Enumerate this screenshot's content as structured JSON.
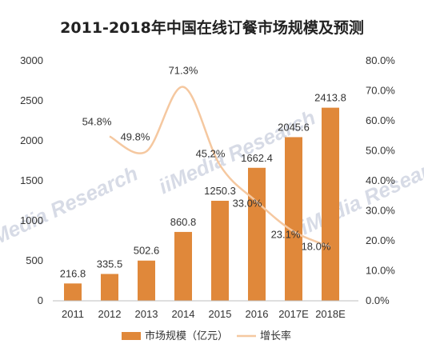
{
  "chart_data": {
    "type": "bar",
    "title": "2011-2018年中国在线订餐市场规模及预测",
    "categories": [
      "2011",
      "2012",
      "2013",
      "2014",
      "2015",
      "2016",
      "2017E",
      "2018E"
    ],
    "series": [
      {
        "name": "市场规模（亿元）",
        "type": "bar",
        "axis": "left",
        "color": "#E0883A",
        "values": [
          216.8,
          335.5,
          502.6,
          860.8,
          1250.3,
          1662.4,
          2045.6,
          2413.8
        ],
        "labels": [
          "216.8",
          "335.5",
          "502.6",
          "860.8",
          "1250.3",
          "1662.4",
          "2045.6",
          "2413.8"
        ]
      },
      {
        "name": "增长率",
        "type": "line",
        "axis": "right",
        "color": "#F5C8A0",
        "values": [
          null,
          54.8,
          49.8,
          71.3,
          45.2,
          33.0,
          23.1,
          18.0
        ],
        "labels": [
          "",
          "54.8%",
          "49.8%",
          "71.3%",
          "45.2%",
          "33.0%",
          "23.1%",
          "18.0%"
        ]
      }
    ],
    "y_left": {
      "min": 0,
      "max": 3000,
      "ticks": [
        "0",
        "500",
        "1000",
        "1500",
        "2000",
        "2500",
        "3000"
      ]
    },
    "y_right": {
      "min": 0,
      "max": 80,
      "ticks": [
        "0.0%",
        "10.0%",
        "20.0%",
        "30.0%",
        "40.0%",
        "50.0%",
        "60.0%",
        "70.0%",
        "80.0%"
      ]
    },
    "grid": false,
    "legend_position": "bottom",
    "watermark": "iiMedia Research"
  }
}
